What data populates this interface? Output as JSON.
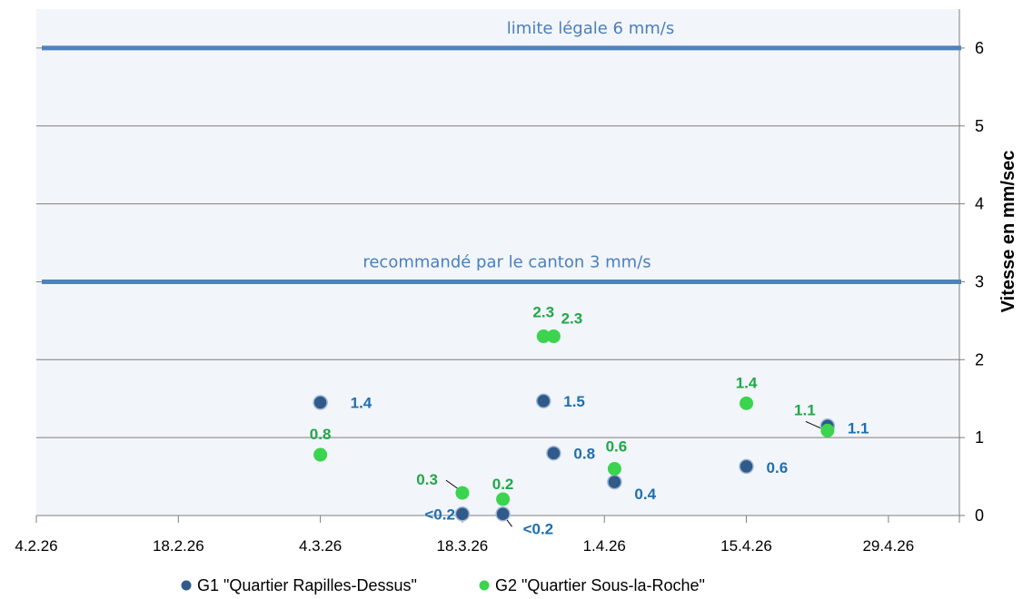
{
  "chart_data": {
    "type": "scatter",
    "title": "",
    "xlabel": "",
    "ylabel": "Vitesse en mm/sec",
    "x_ticks": [
      "4.2.26",
      "18.2.26",
      "4.3.26",
      "18.3.26",
      "1.4.26",
      "15.4.26",
      "29.4.26"
    ],
    "x_range": [
      "2026-02-04",
      "2026-05-06"
    ],
    "ylim": [
      0,
      6.5
    ],
    "y_ticks": [
      0,
      1,
      2,
      3,
      4,
      5,
      6
    ],
    "grid": true,
    "legend_position": "bottom",
    "thresholds": [
      {
        "value": 6,
        "label": "limite légale 6 mm/s",
        "color": "#4f81bd"
      },
      {
        "value": 3,
        "label": "recommandé par le canton 3 mm/s",
        "color": "#4f81bd"
      }
    ],
    "series": [
      {
        "name": "G1 \"Quartier Rapilles-Dessus\"",
        "color": "#2f5a8a",
        "label_color": "#1f6fb0",
        "points": [
          {
            "x": "2026-03-04",
            "y": 1.45,
            "label": "1.4"
          },
          {
            "x": "2026-03-18",
            "y": 0.02,
            "label": "<0.2"
          },
          {
            "x": "2026-03-22",
            "y": 0.02,
            "label": "<0.2"
          },
          {
            "x": "2026-03-26",
            "y": 1.47,
            "label": "1.5"
          },
          {
            "x": "2026-03-27",
            "y": 0.8,
            "label": "0.8"
          },
          {
            "x": "2026-04-02",
            "y": 0.43,
            "label": "0.4"
          },
          {
            "x": "2026-04-15",
            "y": 0.63,
            "label": "0.6"
          },
          {
            "x": "2026-04-23",
            "y": 1.15,
            "label": "1.1"
          }
        ]
      },
      {
        "name": "G2 \"Quartier Sous-la-Roche\"",
        "color": "#3bd44f",
        "label_color": "#20a848",
        "points": [
          {
            "x": "2026-03-04",
            "y": 0.78,
            "label": "0.8"
          },
          {
            "x": "2026-03-18",
            "y": 0.29,
            "label": "0.3"
          },
          {
            "x": "2026-03-22",
            "y": 0.21,
            "label": "0.2"
          },
          {
            "x": "2026-03-26",
            "y": 2.3,
            "label": "2.3"
          },
          {
            "x": "2026-03-27",
            "y": 2.3,
            "label": "2.3"
          },
          {
            "x": "2026-04-02",
            "y": 0.6,
            "label": "0.6"
          },
          {
            "x": "2026-04-15",
            "y": 1.44,
            "label": "1.4"
          },
          {
            "x": "2026-04-23",
            "y": 1.09,
            "label": "1.1"
          }
        ]
      }
    ]
  }
}
